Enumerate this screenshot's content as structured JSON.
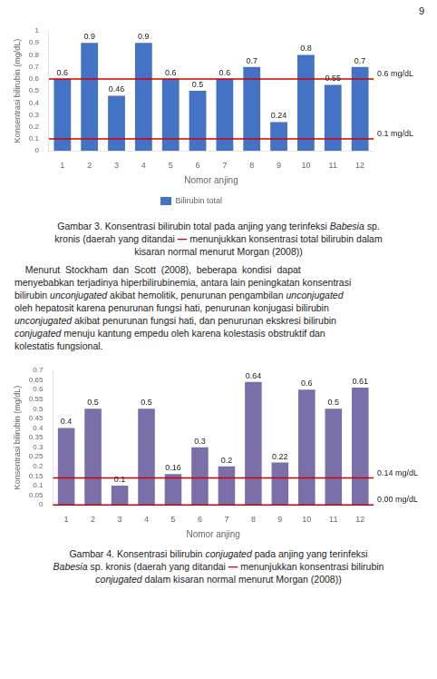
{
  "page_number": "9",
  "chart_data": [
    {
      "type": "bar",
      "categories": [
        1,
        2,
        3,
        4,
        5,
        6,
        7,
        8,
        9,
        10,
        11,
        12
      ],
      "series": [
        {
          "name": "Bilirubin total",
          "color": "#4472c4",
          "values": [
            0.6,
            0.9,
            0.46,
            0.9,
            0.6,
            0.5,
            0.6,
            0.7,
            0.24,
            0.8,
            0.55,
            0.7
          ]
        }
      ],
      "ylabel": "Konsentrasi bilirubin (mg/dL)",
      "xlabel": "Nomor anjing",
      "ylim": [
        0,
        1.0
      ],
      "yticks": [
        0,
        0.1,
        0.2,
        0.3,
        0.4,
        0.5,
        0.6,
        0.7,
        0.8,
        0.9,
        1
      ],
      "grid": false,
      "legend": "bottom",
      "data_labels": true,
      "annotations": [
        {
          "value": 0.6,
          "label": "0.6 mg/dL",
          "color": "#cc0000"
        },
        {
          "value": 0.1,
          "label": "0.1 mg/dL",
          "color": "#cc0000"
        }
      ],
      "caption": [
        {
          "text": "Gambar 3. Konsentrasi bilirubin total pada anjing yang terinfeksi ",
          "style": "normal"
        },
        {
          "text": "Babesia",
          "style": "italic"
        },
        {
          "text": " sp.\nkronis (daerah yang ditandai ",
          "style": "normal"
        },
        {
          "text": "—",
          "color": "#cc0000"
        },
        {
          "text": " menunjukkan konsentrasi total bilirubin dalam\nkisaran normal menurut Morgan (2008))",
          "style": "normal"
        }
      ]
    },
    {
      "type": "bar",
      "categories": [
        1,
        2,
        3,
        4,
        5,
        6,
        7,
        8,
        9,
        10,
        11,
        12
      ],
      "values": [
        0.4,
        0.5,
        0.1,
        0.5,
        0.16,
        0.3,
        0.2,
        0.64,
        0.22,
        0.6,
        0.5,
        0.61
      ],
      "color": "#7b6faa",
      "ylabel": "Konsentrasi bilirubin (mg/dL)",
      "xlabel": "Nomor anjing",
      "ylim": [
        0,
        0.7
      ],
      "yticks": [
        0,
        0.05,
        0.1,
        0.15,
        0.2,
        0.25,
        0.3,
        0.35,
        0.4,
        0.45,
        0.5,
        0.55,
        0.6,
        0.65,
        0.7
      ],
      "grid": false,
      "data_labels": true,
      "annotations": [
        {
          "value": 0.14,
          "label": "0.14 mg/dL",
          "color": "#cc0000"
        },
        {
          "value": 0.0,
          "label": "0.00 mg/dL",
          "color": "#cc0000"
        }
      ],
      "caption": [
        {
          "text": "Gambar 4. Konsentrasi bilirubin ",
          "style": "normal"
        },
        {
          "text": "conjugated",
          "style": "italic"
        },
        {
          "text": " pada anjing yang terinfeksi\n",
          "style": "normal"
        },
        {
          "text": "Babesia",
          "style": "italic"
        },
        {
          "text": " sp. kronis (daerah yang ditandai ",
          "style": "normal"
        },
        {
          "text": "—",
          "color": "#cc0000"
        },
        {
          "text": " menunjukkan konsentrasi bilirubin\n",
          "style": "normal"
        },
        {
          "text": "conjugated",
          "style": "italic"
        },
        {
          "text": " dalam kisaran normal menurut Morgan (2008))",
          "style": "normal"
        }
      ]
    }
  ],
  "paragraph": [
    {
      "text": "    Menurut  Stockham  dan  Scott  (2008),  beberapa  kondisi  dapat\nmenyebabkan terjadinya hiperbilirubinemia, antara lain peningkatan konsentrasi\nbilirubin ",
      "style": "normal"
    },
    {
      "text": "unconjugated",
      "style": "italic"
    },
    {
      "text": " akibat hemolitik, penurunan pengambilan ",
      "style": "normal"
    },
    {
      "text": "unconjugated",
      "style": "italic"
    },
    {
      "text": "\noleh hepatosit karena penurunan fungsi hati, penurunan konjugasi bilirubin\n",
      "style": "normal"
    },
    {
      "text": "unconjugated",
      "style": "italic"
    },
    {
      "text": " akibat penurunan fungsi hati, dan penurunan ekskresi bilirubin\n",
      "style": "normal"
    },
    {
      "text": "conjugated",
      "style": "italic"
    },
    {
      "text": " menuju kantung empedu oleh karena kolestasis obstruktif dan\nkolestatis fungsional.",
      "style": "normal"
    }
  ]
}
